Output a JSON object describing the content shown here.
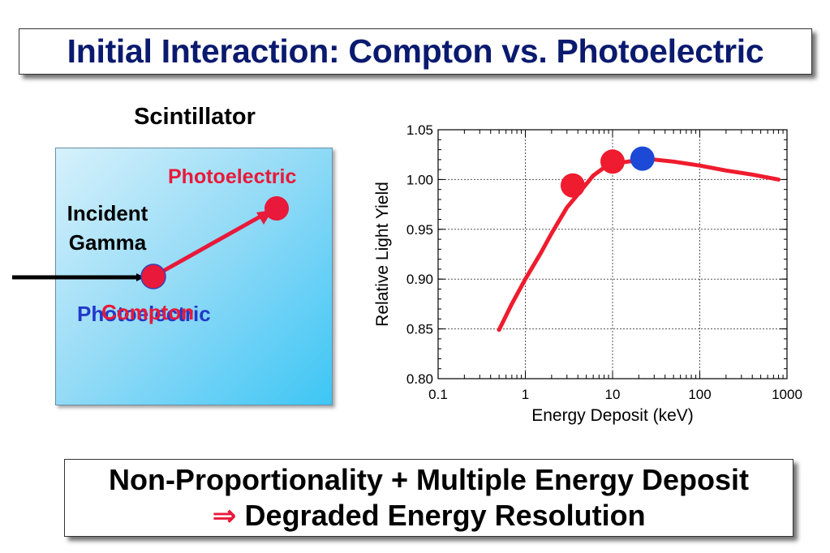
{
  "title": "Initial Interaction: Compton vs. Photoelectric",
  "diagram": {
    "heading": "Scintillator",
    "incident_line1": "Incident",
    "incident_line2": "Gamma",
    "photoelectric_top": "Photoelectric",
    "photoelectric_bottom": "Photoelectric",
    "compton": "Compton",
    "colors": {
      "red": "#e8193a",
      "blue": "#2238c9",
      "black": "#000000"
    }
  },
  "chart_data": {
    "type": "line",
    "xlabel": "Energy Deposit (keV)",
    "ylabel": "Relative Light Yield",
    "xscale": "log",
    "xlim": [
      0.1,
      1000
    ],
    "ylim": [
      0.8,
      1.05
    ],
    "xticks": [
      "0.1",
      "1",
      "10",
      "100",
      "1000"
    ],
    "yticks": [
      "0.80",
      "0.85",
      "0.90",
      "0.95",
      "1.00",
      "1.05"
    ],
    "grid": true,
    "series": [
      {
        "color": "#ee1c2e",
        "x": [
          0.5,
          0.7,
          1.0,
          1.5,
          2.0,
          3.0,
          4.0,
          6.0,
          8.0,
          10,
          15,
          20,
          30,
          50,
          100,
          200,
          400,
          800
        ],
        "y": [
          0.849,
          0.875,
          0.9,
          0.926,
          0.946,
          0.972,
          0.985,
          1.004,
          1.012,
          1.016,
          1.018,
          1.019,
          1.02,
          1.018,
          1.014,
          1.009,
          1.005,
          1.0
        ]
      }
    ],
    "markers": [
      {
        "x": 3.5,
        "y": 0.994,
        "color": "#ee1c2e"
      },
      {
        "x": 10,
        "y": 1.018,
        "color": "#ee1c2e"
      },
      {
        "x": 22,
        "y": 1.021,
        "color": "#1c4ad6"
      }
    ]
  },
  "bottom": {
    "line1": "Non-Proportionality + Multiple Energy Deposit",
    "arrow": "⇒",
    "line2": "Degraded Energy Resolution"
  }
}
